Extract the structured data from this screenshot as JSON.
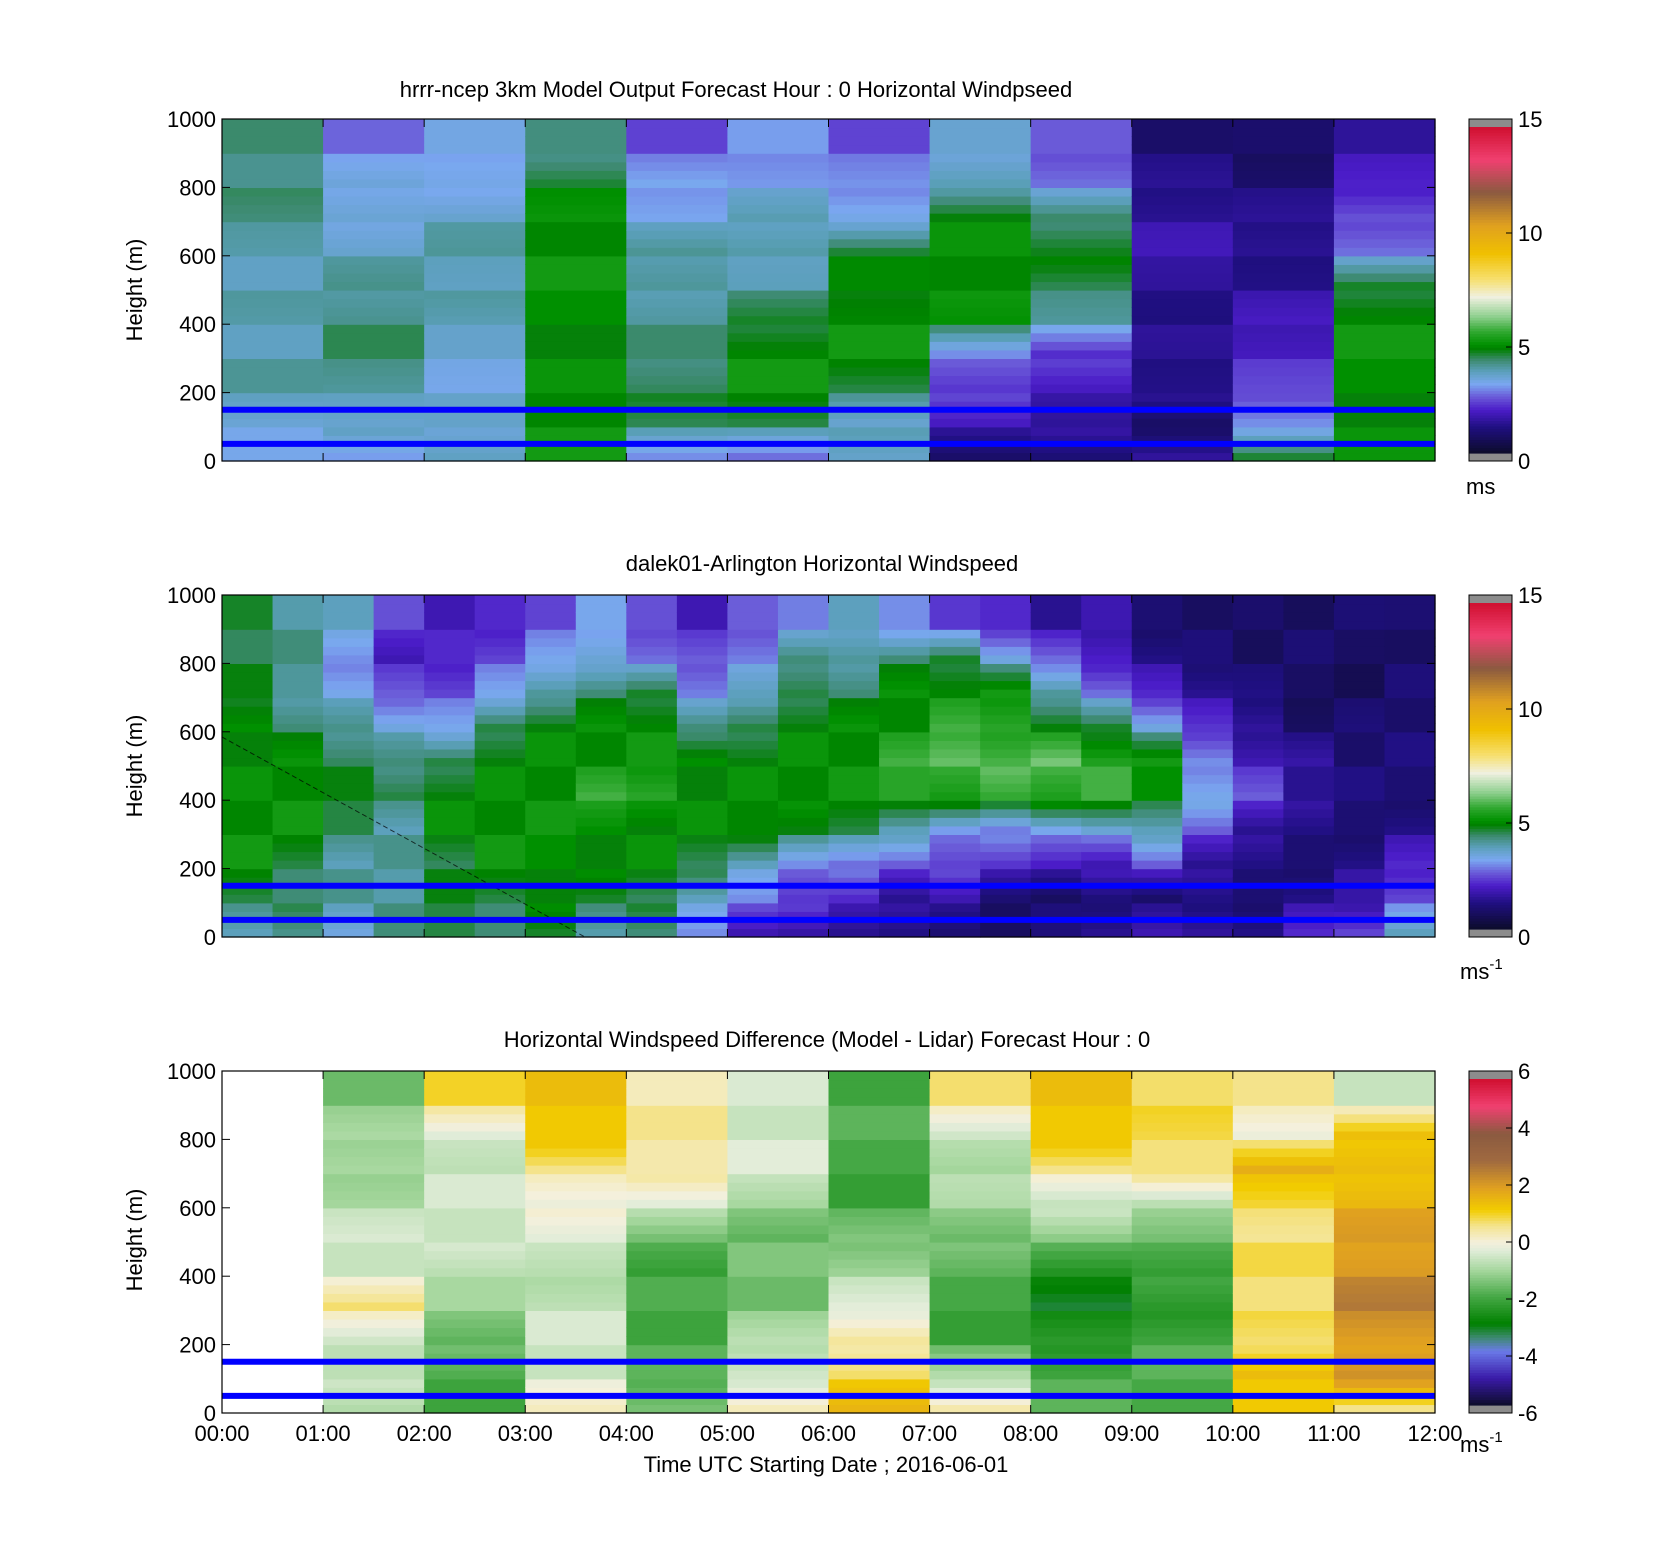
{
  "chart_data": [
    {
      "type": "heatmap",
      "title": "hrrr-ncep 3km Model Output   Forecast Hour : 0 Horizontal Windpseed",
      "ylabel": "Height (m)",
      "xlabel": "",
      "ylim": [
        0,
        1000
      ],
      "yticks": [
        "0",
        "200",
        "400",
        "600",
        "800",
        "1000"
      ],
      "x": [
        "00:00",
        "01:00",
        "02:00",
        "03:00",
        "04:00",
        "05:00",
        "06:00",
        "07:00",
        "08:00",
        "09:00",
        "10:00",
        "11:00",
        "12:00"
      ],
      "x_tick_labels_shown": false,
      "colorbar": {
        "min": 0,
        "max": 15,
        "ticks": [
          "0",
          "5",
          "10",
          "15"
        ],
        "units": "ms",
        "units_sup": ""
      },
      "reference_lines_m": [
        50,
        150
      ],
      "reference_line_color": "#0000ff",
      "levels_m": [
        0,
        100,
        200,
        300,
        400,
        500,
        600,
        700,
        800,
        900,
        1000
      ],
      "windspeed_ms": [
        [
          3.5,
          3.0,
          3.8,
          5.0,
          3.0,
          3.0,
          3.5,
          1.0,
          0.8,
          1.5,
          4.8,
          5.0
        ],
        [
          3.5,
          3.8,
          3.5,
          5.0,
          4.2,
          4.5,
          3.8,
          1.8,
          1.6,
          0.6,
          3.0,
          5.0
        ],
        [
          3.8,
          4.0,
          3.5,
          5.0,
          4.5,
          5.0,
          4.5,
          2.5,
          1.8,
          1.4,
          2.2,
          5.0
        ],
        [
          3.8,
          4.2,
          3.6,
          5.0,
          4.2,
          5.0,
          5.0,
          3.0,
          2.4,
          1.3,
          2.0,
          5.0
        ],
        [
          3.8,
          4.2,
          3.6,
          5.0,
          4.2,
          4.5,
          5.0,
          4.8,
          4.0,
          1.4,
          1.8,
          5.0
        ],
        [
          3.9,
          4.0,
          3.8,
          5.0,
          4.0,
          4.0,
          4.8,
          5.0,
          4.2,
          1.5,
          1.5,
          4.5
        ],
        [
          3.9,
          3.8,
          3.9,
          5.0,
          3.8,
          3.9,
          4.8,
          5.0,
          4.8,
          1.6,
          1.4,
          3.0
        ],
        [
          4.0,
          3.5,
          3.8,
          5.0,
          3.3,
          3.6,
          3.3,
          5.0,
          4.2,
          1.5,
          1.2,
          2.5
        ],
        [
          4.2,
          3.2,
          3.3,
          4.8,
          3.1,
          3.2,
          2.8,
          3.8,
          3.0,
          1.3,
          1.0,
          1.8
        ],
        [
          4.2,
          2.8,
          3.1,
          4.2,
          2.6,
          3.0,
          2.5,
          3.3,
          2.6,
          1.1,
          0.8,
          1.6
        ]
      ]
    },
    {
      "type": "heatmap",
      "title": "dalek01-Arlington  Horizontal Windspeed",
      "ylabel": "Height (m)",
      "xlabel": "",
      "ylim": [
        0,
        1000
      ],
      "yticks": [
        "0",
        "200",
        "400",
        "600",
        "800",
        "1000"
      ],
      "x": [
        "00:00",
        "01:00",
        "02:00",
        "03:00",
        "04:00",
        "05:00",
        "06:00",
        "07:00",
        "08:00",
        "09:00",
        "10:00",
        "11:00",
        "12:00"
      ],
      "x_tick_labels_shown": false,
      "colorbar": {
        "min": 0,
        "max": 15,
        "ticks": [
          "0",
          "5",
          "10",
          "15"
        ],
        "units": "ms",
        "units_sup": "-1"
      },
      "reference_lines_m": [
        50,
        150
      ],
      "reference_line_color": "#0000ff",
      "profile_hours": [
        0.0,
        0.5,
        1.0,
        1.5,
        2.0,
        2.5,
        3.0,
        3.5,
        4.0,
        4.5,
        5.0,
        5.5,
        6.0,
        6.5,
        7.0,
        7.5,
        8.0,
        8.5,
        9.0,
        9.5,
        10.0,
        10.5,
        11.0,
        11.5,
        12.0
      ],
      "levels_m": [
        0,
        100,
        200,
        300,
        400,
        500,
        600,
        700,
        800,
        900,
        1000
      ],
      "windspeed_ms": [
        [
          4.0,
          4.0,
          3.5,
          4.0,
          4.5,
          4.5,
          4.5,
          4.0,
          4.0,
          3.0,
          2.0,
          1.5,
          1.5,
          1.0,
          1.0,
          1.0,
          1.0,
          1.5,
          1.5,
          1.5,
          1.5,
          2.0,
          2.5,
          3.5,
          4.5
        ],
        [
          4.5,
          4.5,
          4.0,
          4.0,
          4.5,
          4.5,
          5.0,
          4.5,
          4.5,
          3.5,
          3.0,
          2.5,
          2.0,
          1.5,
          1.5,
          1.0,
          1.0,
          1.0,
          1.0,
          1.0,
          1.0,
          1.5,
          1.5,
          2.5,
          3.5
        ],
        [
          5.0,
          4.5,
          4.0,
          4.0,
          4.5,
          5.0,
          5.0,
          5.0,
          5.0,
          4.5,
          3.5,
          3.0,
          3.0,
          2.5,
          2.5,
          2.0,
          2.0,
          2.0,
          2.5,
          1.5,
          1.0,
          1.0,
          1.5,
          2.0,
          2.5
        ],
        [
          5.0,
          5.0,
          4.5,
          4.0,
          5.0,
          5.0,
          5.0,
          5.0,
          5.0,
          5.0,
          5.0,
          4.5,
          4.5,
          4.0,
          3.0,
          3.0,
          3.0,
          3.5,
          4.0,
          2.5,
          1.5,
          1.0,
          1.0,
          1.5,
          2.0
        ],
        [
          5.0,
          5.0,
          4.5,
          4.5,
          5.0,
          5.0,
          5.0,
          5.5,
          5.5,
          5.0,
          5.0,
          5.0,
          5.0,
          5.5,
          5.5,
          5.5,
          5.5,
          5.5,
          5.0,
          3.5,
          2.5,
          1.5,
          1.0,
          1.0,
          1.5
        ],
        [
          5.0,
          5.0,
          4.5,
          4.0,
          4.5,
          5.0,
          5.0,
          5.0,
          5.0,
          5.0,
          5.0,
          5.0,
          5.0,
          5.5,
          6.0,
          6.0,
          6.0,
          5.5,
          5.0,
          3.0,
          2.0,
          1.5,
          1.0,
          1.0,
          1.0
        ],
        [
          5.0,
          4.5,
          4.0,
          3.5,
          3.0,
          4.5,
          5.0,
          5.0,
          5.0,
          4.0,
          4.5,
          5.0,
          5.0,
          5.0,
          5.5,
          5.5,
          5.0,
          4.5,
          3.5,
          2.0,
          1.5,
          1.0,
          1.0,
          1.0,
          1.0
        ],
        [
          4.5,
          4.0,
          3.5,
          2.5,
          2.5,
          3.0,
          4.0,
          4.5,
          4.5,
          3.0,
          3.5,
          4.5,
          4.5,
          5.0,
          5.0,
          5.0,
          4.0,
          3.0,
          2.0,
          1.5,
          1.0,
          0.8,
          0.8,
          1.0,
          1.0
        ],
        [
          4.5,
          4.0,
          3.0,
          2.0,
          2.0,
          2.5,
          3.0,
          3.5,
          3.0,
          2.5,
          3.0,
          4.0,
          4.0,
          4.5,
          4.5,
          3.5,
          2.5,
          2.0,
          1.5,
          1.0,
          0.8,
          0.8,
          0.8,
          1.0,
          1.0
        ],
        [
          4.5,
          4.0,
          3.5,
          2.5,
          2.0,
          2.0,
          2.5,
          3.0,
          2.5,
          2.0,
          2.5,
          3.0,
          3.5,
          3.0,
          2.5,
          2.0,
          1.5,
          1.5,
          1.0,
          1.0,
          0.8,
          0.8,
          0.8,
          1.0,
          1.0
        ]
      ]
    },
    {
      "type": "heatmap",
      "title": "Horizontal Windspeed Difference (Model - Lidar) Forecast Hour : 0",
      "ylabel": "Height (m)",
      "xlabel": "Time UTC  Starting Date ; 2016-06-01",
      "ylim": [
        0,
        1000
      ],
      "yticks": [
        "0",
        "200",
        "400",
        "600",
        "800",
        "1000"
      ],
      "x": [
        "00:00",
        "01:00",
        "02:00",
        "03:00",
        "04:00",
        "05:00",
        "06:00",
        "07:00",
        "08:00",
        "09:00",
        "10:00",
        "11:00",
        "12:00"
      ],
      "x_tick_labels_shown": true,
      "colorbar": {
        "min": -6,
        "max": 6,
        "ticks": [
          "-6",
          "-4",
          "-2",
          "0",
          "2",
          "4",
          "6"
        ],
        "units": "ms",
        "units_sup": "-1"
      },
      "reference_lines_m": [
        50,
        150
      ],
      "reference_line_color": "#0000ff",
      "levels_m": [
        0,
        100,
        200,
        300,
        400,
        500,
        600,
        700,
        800,
        900,
        1000
      ],
      "difference_ms": [
        [
          null,
          -1.0,
          -2.0,
          0.0,
          -1.5,
          0.5,
          1.5,
          0.5,
          -2.0,
          -2.0,
          1.5,
          0.5
        ],
        [
          null,
          -0.5,
          -2.0,
          -0.5,
          -2.0,
          -0.5,
          1.0,
          -1.0,
          -2.0,
          -2.0,
          1.5,
          2.5
        ],
        [
          null,
          -0.5,
          -1.5,
          -0.5,
          -2.0,
          -1.0,
          0.5,
          -2.0,
          -2.5,
          -2.0,
          0.5,
          2.0
        ],
        [
          null,
          0.5,
          -1.0,
          -0.5,
          -2.0,
          -1.5,
          -0.5,
          -2.0,
          -3.0,
          -2.5,
          0.8,
          2.5
        ],
        [
          null,
          -0.5,
          -1.0,
          -0.8,
          -2.0,
          -1.5,
          -1.0,
          -2.0,
          -2.5,
          -2.0,
          0.8,
          2.2
        ],
        [
          null,
          -0.5,
          -0.5,
          -0.5,
          -1.5,
          -1.5,
          -1.5,
          -1.5,
          -1.5,
          -1.5,
          0.8,
          2.0
        ],
        [
          null,
          -0.8,
          -0.5,
          0.0,
          -0.5,
          -1.0,
          -2.0,
          -1.0,
          -0.5,
          -1.0,
          1.0,
          1.8
        ],
        [
          null,
          -1.0,
          -0.5,
          0.5,
          0.5,
          -0.5,
          -2.0,
          -0.8,
          0.5,
          0.8,
          1.5,
          1.5
        ],
        [
          null,
          -1.2,
          -0.3,
          1.5,
          0.5,
          -0.5,
          -2.0,
          -0.5,
          1.5,
          0.8,
          0.0,
          1.2
        ],
        [
          null,
          -1.5,
          0.8,
          1.5,
          0.5,
          -0.5,
          -2.0,
          0.5,
          1.5,
          1.0,
          0.5,
          -0.5
        ]
      ]
    }
  ]
}
